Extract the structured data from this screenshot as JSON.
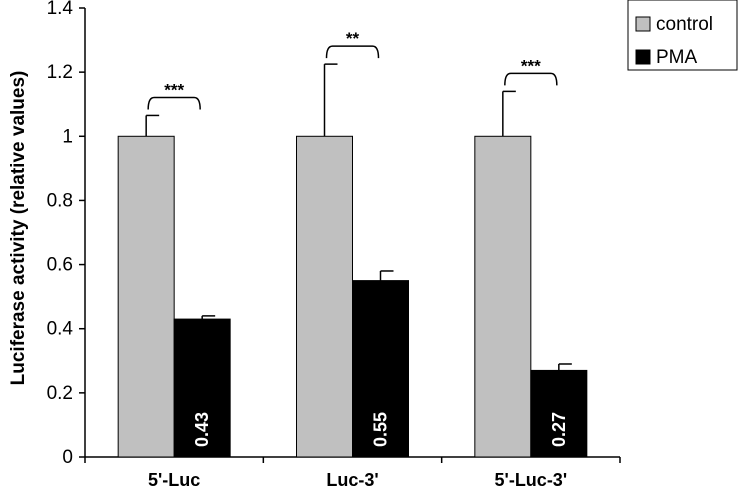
{
  "chart_data": {
    "type": "bar",
    "title": "",
    "xlabel": "",
    "ylabel": "Luciferase activity (relative values)",
    "ylim": [
      0,
      1.4
    ],
    "yticks": [
      "0",
      "0.2",
      "0.4",
      "0.6",
      "0.8",
      "1",
      "1.2",
      "1.4"
    ],
    "categories": [
      "5'-Luc",
      "Luc-3'",
      "5'-Luc-3'"
    ],
    "series": [
      {
        "name": "control",
        "color": "#c0c0c0",
        "values": [
          1.0,
          1.0,
          1.0
        ],
        "errors": [
          0.065,
          0.225,
          0.14
        ]
      },
      {
        "name": "PMA",
        "color": "#000000",
        "values": [
          0.43,
          0.55,
          0.27
        ],
        "errors": [
          0.01,
          0.03,
          0.02
        ]
      }
    ],
    "bar_labels": [
      "0.43",
      "0.55",
      "0.27"
    ],
    "significance": [
      "***",
      "**",
      "***"
    ],
    "legend_position": "top-right",
    "grid": false
  }
}
